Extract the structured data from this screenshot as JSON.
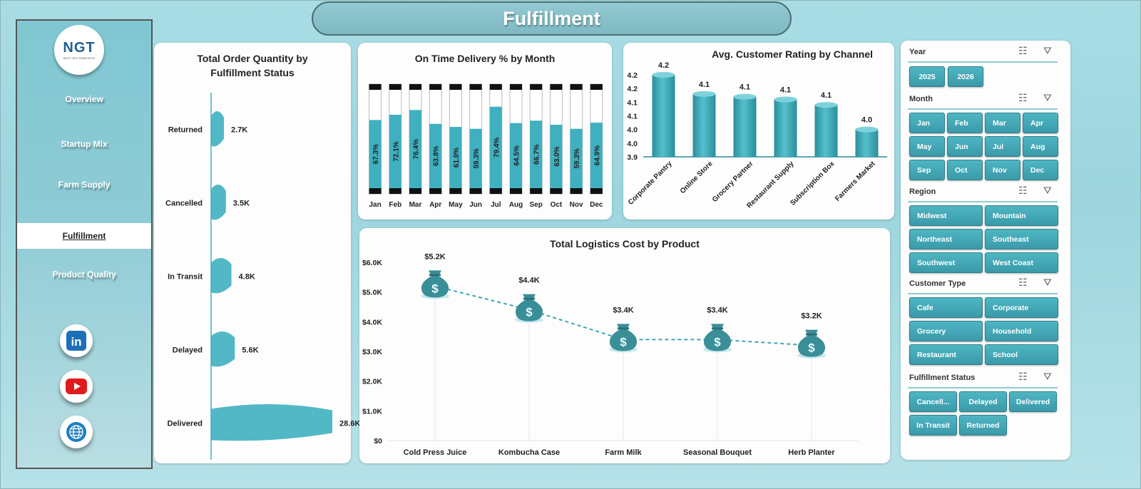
{
  "page_title": "Fulfillment",
  "logo": {
    "text": "NGT",
    "subtext": "NEXT GEN TEMPLATES"
  },
  "nav": [
    "Overview",
    "Startup Mix",
    "Farm Supply",
    "Fulfillment",
    "Product Quality"
  ],
  "nav_active": "Fulfillment",
  "social": [
    "linkedin-icon",
    "youtube-icon",
    "globe-icon"
  ],
  "colors": {
    "accent": "#3fb0c0",
    "accent_dark": "#2a8b99",
    "sidebar": "#7fc7d2"
  },
  "charts": {
    "status": {
      "title_line1": "Total Order Quantity by",
      "title_line2": "Fulfillment Status"
    },
    "ontime": {
      "title": "On Time Delivery % by Month"
    },
    "rating": {
      "title": "Avg. Customer Rating by Channel"
    },
    "logistics": {
      "title": "Total Logistics Cost by Product"
    }
  },
  "chart_data": [
    {
      "type": "bar",
      "id": "status",
      "title": "Total Order Quantity by Fulfillment Status",
      "categories": [
        "Returned",
        "Cancelled",
        "In Transit",
        "Delayed",
        "Delivered"
      ],
      "values": [
        2700,
        3500,
        4800,
        5600,
        28600
      ],
      "labels": [
        "2.7K",
        "3.5K",
        "4.8K",
        "5.6K",
        "28.6K"
      ],
      "orientation": "horizontal"
    },
    {
      "type": "bar",
      "id": "ontime",
      "title": "On Time Delivery % by Month",
      "categories": [
        "Jan",
        "Feb",
        "Mar",
        "Apr",
        "May",
        "Jun",
        "Jul",
        "Aug",
        "Sep",
        "Oct",
        "Nov",
        "Dec"
      ],
      "values": [
        67.3,
        72.1,
        76.4,
        63.8,
        61.0,
        59.3,
        79.4,
        64.5,
        66.7,
        63.0,
        59.3,
        64.9
      ],
      "labels": [
        "67.3%",
        "72.1%",
        "76.4%",
        "63.8%",
        "61.0%",
        "59.3%",
        "79.4%",
        "64.5%",
        "66.7%",
        "63.0%",
        "59.3%",
        "64.9%"
      ],
      "ylim": [
        0,
        100
      ]
    },
    {
      "type": "bar",
      "id": "rating",
      "title": "Avg. Customer Rating by Channel",
      "categories": [
        "Corporate Pantry",
        "Online Store",
        "Grocery Partner",
        "Restaurant Supply",
        "Subscription Box",
        "Farmers Market"
      ],
      "values": [
        4.2,
        4.13,
        4.12,
        4.11,
        4.09,
        4.0
      ],
      "labels": [
        "4.2",
        "4.1",
        "4.1",
        "4.1",
        "4.1",
        "4.0"
      ],
      "yticks": [
        "4.2",
        "4.2",
        "4.1",
        "4.1",
        "4.0",
        "4.0",
        "3.9"
      ],
      "ylim": [
        3.9,
        4.2
      ]
    },
    {
      "type": "line",
      "id": "logistics",
      "title": "Total Logistics Cost by Product",
      "categories": [
        "Cold Press Juice",
        "Kombucha Case",
        "Farm Milk",
        "Seasonal Bouquet",
        "Herb Planter"
      ],
      "values": [
        5200,
        4400,
        3400,
        3400,
        3200
      ],
      "labels": [
        "$5.2K",
        "$4.4K",
        "$3.4K",
        "$3.4K",
        "$3.2K"
      ],
      "yticks": [
        "$0",
        "$1.0K",
        "$2.0K",
        "$3.0K",
        "$4.0K",
        "$5.0K",
        "$6.0K"
      ],
      "ylim": [
        0,
        6000
      ],
      "marker": "money-bag-icon"
    }
  ],
  "slicers": [
    {
      "title": "Year",
      "items": [
        "2025",
        "2026"
      ]
    },
    {
      "title": "Month",
      "items": [
        "Jan",
        "Feb",
        "Mar",
        "Apr",
        "May",
        "Jun",
        "Jul",
        "Aug",
        "Sep",
        "Oct",
        "Nov",
        "Dec"
      ]
    },
    {
      "title": "Region",
      "items": [
        "Midwest",
        "Mountain",
        "Northeast",
        "Southeast",
        "Southwest",
        "West Coast"
      ]
    },
    {
      "title": "Customer Type",
      "items": [
        "Cafe",
        "Corporate",
        "Grocery",
        "Household",
        "Restaurant",
        "School"
      ]
    },
    {
      "title": "Fulfillment Status",
      "items": [
        "Cancell...",
        "Delayed",
        "Delivered",
        "In Transit",
        "Returned"
      ]
    }
  ]
}
